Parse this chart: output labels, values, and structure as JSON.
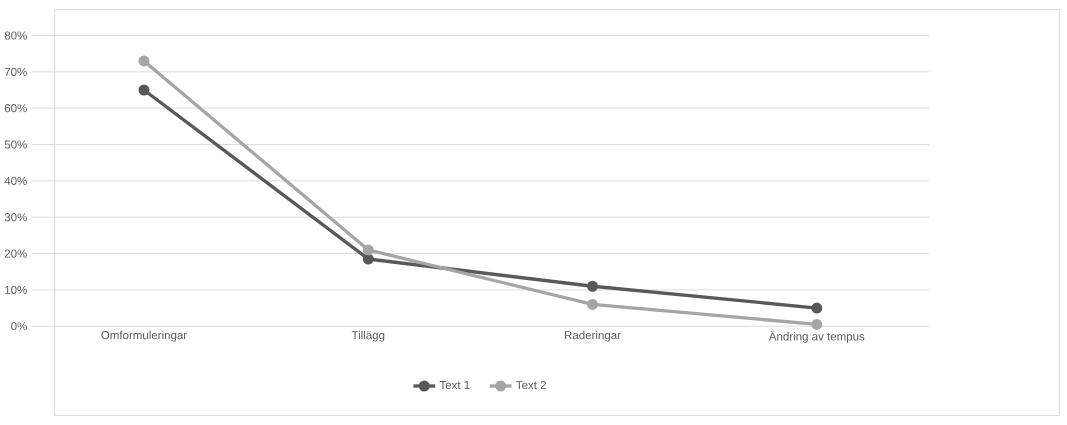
{
  "chart_data": {
    "type": "line",
    "categories": [
      "Omformuleringar",
      "Tillägg",
      "Raderingar",
      "Ändring av tempus"
    ],
    "series": [
      {
        "name": "Text 1",
        "color": "#595959",
        "values": [
          65,
          18.5,
          11,
          5
        ]
      },
      {
        "name": "Text 2",
        "color": "#a5a5a5",
        "values": [
          73,
          21,
          6,
          0.5
        ]
      }
    ],
    "ylim": [
      0,
      80
    ],
    "yticks": [
      {
        "value": 0,
        "label": "0%"
      },
      {
        "value": 10,
        "label": "10%"
      },
      {
        "value": 20,
        "label": "20%"
      },
      {
        "value": 30,
        "label": "30%"
      },
      {
        "value": 40,
        "label": "40%"
      },
      {
        "value": 50,
        "label": "50%"
      },
      {
        "value": 60,
        "label": "60%"
      },
      {
        "value": 70,
        "label": "70%"
      },
      {
        "value": 80,
        "label": "80%"
      }
    ],
    "grid": "y",
    "legend": "bottom",
    "marker": "circle",
    "line_style": "solid"
  }
}
